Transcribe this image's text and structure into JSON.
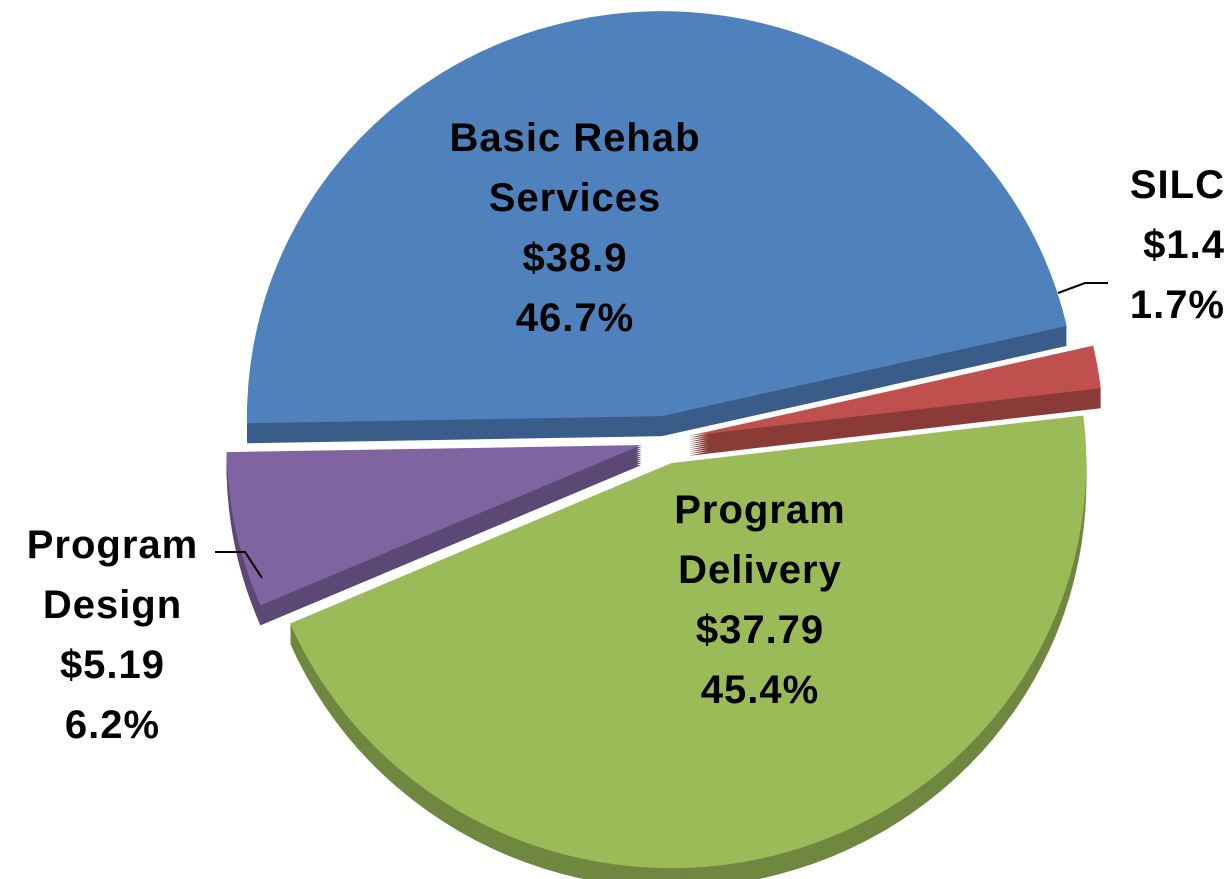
{
  "chart_data": {
    "type": "pie",
    "categories": [
      "Basic Rehab Services",
      "SILC",
      "Program Delivery",
      "Program Design"
    ],
    "values": [
      46.7,
      1.7,
      45.4,
      6.2
    ],
    "value_labels": [
      "46.7%",
      "1.7%",
      "45.4%",
      "6.2%"
    ],
    "amounts": [
      38.9,
      1.4,
      37.79,
      5.19
    ],
    "amount_labels": [
      "$38.9",
      "$1.4",
      "$37.79",
      "$5.19"
    ],
    "colors": [
      "#4f81bd",
      "#c0504d",
      "#9bbb59",
      "#8064a2"
    ]
  }
}
